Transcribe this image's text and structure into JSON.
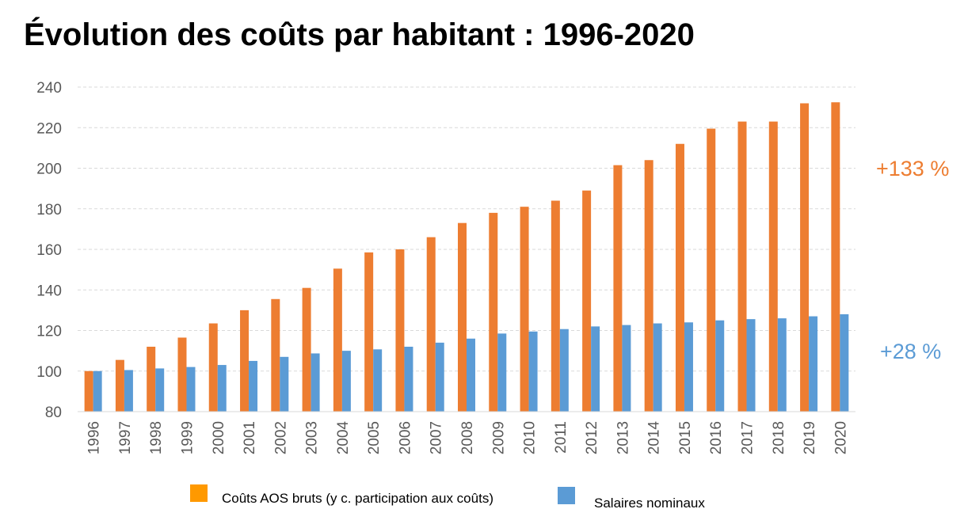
{
  "title": "Évolution des coûts par habitant : 1996-2020",
  "colors": {
    "costs": "#ED7D31",
    "salaries": "#5B9BD5",
    "legend_costs": "#FF9900"
  },
  "annotations": {
    "costs_change": "+133 %",
    "salaries_change": "+28 %"
  },
  "legend": {
    "costs": "Coûts AOS bruts (y c. participation aux coûts)",
    "salaries": "Salaires nominaux"
  },
  "chart_data": {
    "type": "bar",
    "title": "Évolution des coûts par habitant : 1996-2020",
    "xlabel": "",
    "ylabel": "",
    "ylim": [
      80,
      240
    ],
    "yticks": [
      80,
      100,
      120,
      140,
      160,
      180,
      200,
      220,
      240
    ],
    "grid": true,
    "legend_position": "bottom",
    "categories": [
      "1996",
      "1997",
      "1998",
      "1999",
      "2000",
      "2001",
      "2002",
      "2003",
      "2004",
      "2005",
      "2006",
      "2007",
      "2008",
      "2009",
      "2010",
      "2011",
      "2012",
      "2013",
      "2014",
      "2015",
      "2016",
      "2017",
      "2018",
      "2019",
      "2020"
    ],
    "series": [
      {
        "name": "Coûts AOS bruts (y c. participation aux coûts)",
        "values": [
          100,
          105.5,
          112,
          116.5,
          123.5,
          130,
          135.5,
          141,
          150.5,
          158.5,
          160,
          166,
          173,
          178,
          181,
          184,
          189,
          201.5,
          204,
          212,
          219.5,
          223,
          223,
          232,
          232.5
        ]
      },
      {
        "name": "Salaires nominaux",
        "values": [
          100,
          100.5,
          101.3,
          102,
          103,
          105,
          107,
          108.7,
          110,
          110.7,
          112,
          114,
          116,
          118.5,
          119.5,
          120.7,
          122,
          122.7,
          123.5,
          124,
          125,
          125.6,
          126,
          127,
          128
        ]
      }
    ]
  }
}
